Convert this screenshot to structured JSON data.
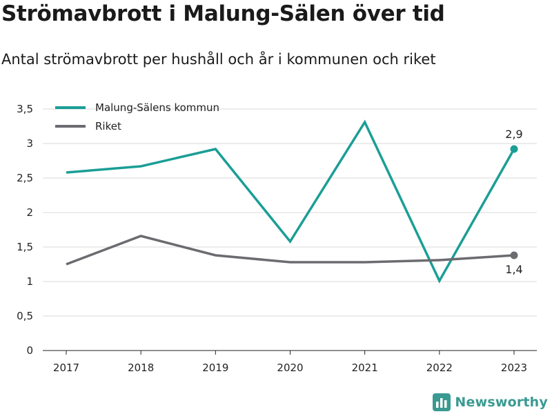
{
  "title": "Strömavbrott i Malung-Sälen över tid",
  "subtitle": "Antal strömavbrott per hushåll och år i kommunen och riket",
  "brand": {
    "name": "Newsworthy",
    "icon": "bar-chart-logo-icon",
    "color": "#3a9a92"
  },
  "chart_data": {
    "type": "line",
    "title": "Strömavbrott i Malung-Sälen över tid",
    "subtitle": "Antal strömavbrott per hushåll och år i kommunen och riket",
    "x": [
      "2017",
      "2018",
      "2019",
      "2020",
      "2021",
      "2022",
      "2023"
    ],
    "ylim": [
      0,
      3.5
    ],
    "yticks": [
      0,
      0.5,
      1,
      1.5,
      2,
      2.5,
      3,
      3.5
    ],
    "ytick_labels": [
      "0",
      "0,5",
      "1",
      "1,5",
      "2",
      "2,5",
      "3",
      "3,5"
    ],
    "grid": true,
    "legend_position": "top-left",
    "series": [
      {
        "name": "Malung-Sälens kommun",
        "color": "#1a9e96",
        "values": [
          2.58,
          2.67,
          2.92,
          1.58,
          3.31,
          1.01,
          2.92
        ],
        "end_label": "2,9"
      },
      {
        "name": "Riket",
        "color": "#6b6b70",
        "values": [
          1.25,
          1.66,
          1.38,
          1.28,
          1.28,
          1.31,
          1.38
        ],
        "end_label": "1,4"
      }
    ]
  }
}
